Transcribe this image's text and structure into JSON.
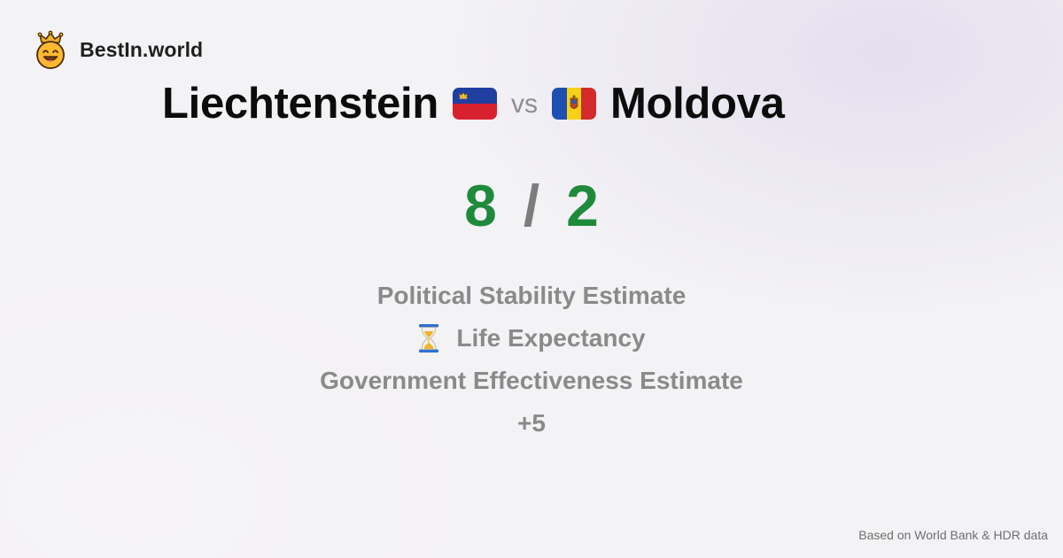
{
  "brand": {
    "name": "BestIn.world",
    "logo_icon": "crowned-smiley-icon"
  },
  "comparison": {
    "left_country": "Liechtenstein",
    "left_flag_icon": "liechtenstein-flag-icon",
    "vs_label": "vs",
    "right_country": "Moldova",
    "right_flag_icon": "moldova-flag-icon"
  },
  "score": {
    "left": "8",
    "separator": "/",
    "right": "2",
    "color": "#1f8a3c"
  },
  "metrics": {
    "items": [
      {
        "label": "Political Stability Estimate"
      },
      {
        "label": "Life Expectancy",
        "icon": "hourglass-icon"
      },
      {
        "label": "Government Effectiveness Estimate"
      },
      {
        "label": "+5"
      }
    ]
  },
  "footer": {
    "source_note": "Based on World Bank & HDR data"
  }
}
